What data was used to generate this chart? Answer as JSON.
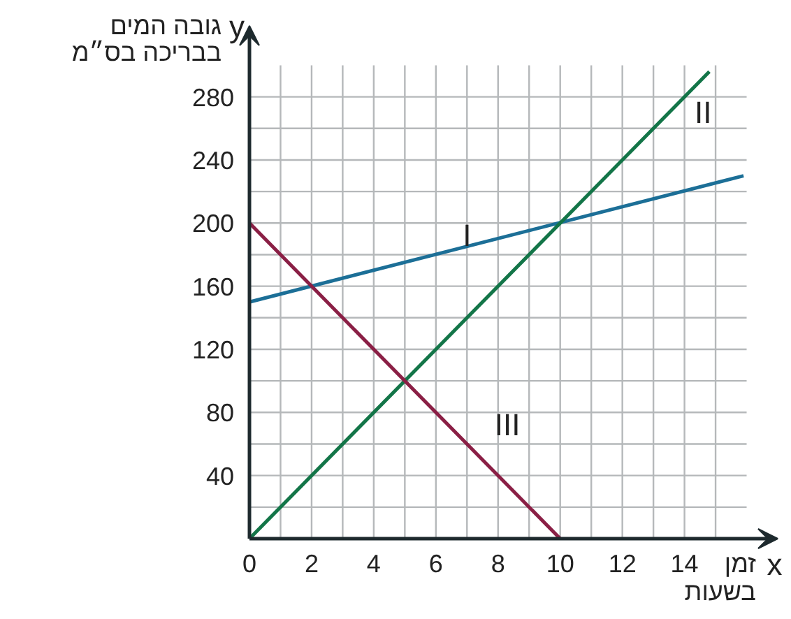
{
  "chart_data": {
    "type": "line",
    "xlabel": "זמן\nבשעות",
    "ylabel": "גובה המים\nבבריכה בס״מ",
    "annotations": [
      "x",
      "y",
      "I",
      "II",
      "III"
    ],
    "series": [
      {
        "x": [
          0,
          15.9
        ],
        "values": [
          150,
          230
        ],
        "color": "#1c6f97"
      },
      {
        "x": [
          0,
          14.8
        ],
        "values": [
          0,
          296
        ],
        "color": "#137548"
      },
      {
        "x": [
          0,
          10
        ],
        "values": [
          200,
          0
        ],
        "color": "#8a1f45"
      }
    ],
    "xlim": [
      0,
      17
    ],
    "ylim": [
      0,
      325
    ],
    "xticks": [
      0,
      {
        "value": 1,
        "label": null
      },
      2,
      {
        "value": 3,
        "label": null
      },
      4,
      {
        "value": 5,
        "label": null
      },
      6,
      {
        "value": 7,
        "label": null
      },
      8,
      {
        "value": 9,
        "label": null
      },
      10,
      {
        "value": 11,
        "label": null
      },
      12,
      {
        "value": 13,
        "label": null
      },
      14,
      {
        "value": 15,
        "label": null
      }
    ],
    "yticks": [
      {
        "value": 20,
        "label": null
      },
      40,
      {
        "value": 60,
        "label": null
      },
      80,
      {
        "value": 100,
        "label": null
      },
      120,
      {
        "value": 140,
        "label": null
      },
      160,
      {
        "value": 180,
        "label": null
      },
      200,
      {
        "value": 220,
        "label": null
      },
      240,
      {
        "value": 260,
        "label": null
      },
      280
    ],
    "grid": true,
    "marker": "none",
    "line_style": "solid"
  }
}
